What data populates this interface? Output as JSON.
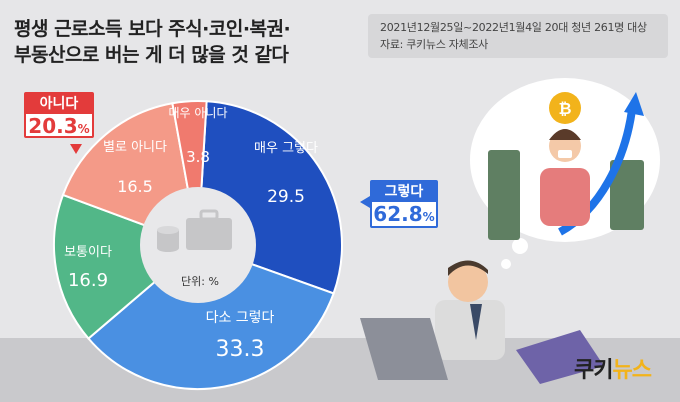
{
  "title": {
    "line1": "평생 근로소득 보다 주식·코인·복권·",
    "line2": "부동산으로 버는 게 더 많을 것 같다"
  },
  "meta": {
    "survey": "2021년12월25일~2022년1월4일  20대 청년 261명 대상",
    "source": "자료: 쿠키뉴스 자체조사"
  },
  "callouts": {
    "no": {
      "label": "아니다",
      "value": "20.3",
      "unit": "%"
    },
    "yes": {
      "label": "그렇다",
      "value": "62.8",
      "unit": "%"
    }
  },
  "unit_label": "단위: %",
  "logo": {
    "main": "쿠키",
    "accent": "뉴스"
  },
  "colors": {
    "bg": "#e6e6e8",
    "very_no": "#f07a6e",
    "no": "#f49a88",
    "neutral": "#52b788",
    "somewhat_yes": "#4a90e2",
    "very_yes": "#1f4fbf",
    "accent_red": "#e33b3b",
    "accent_blue": "#2f6ad9"
  },
  "chart_data": {
    "type": "pie",
    "variant": "donut",
    "unit": "%",
    "slices": [
      {
        "label": "매우 그렇다",
        "value": 29.5
      },
      {
        "label": "다소 그렇다",
        "value": 33.3
      },
      {
        "label": "보통이다",
        "value": 16.9
      },
      {
        "label": "별로 아니다",
        "value": 16.5
      },
      {
        "label": "매우 아니다",
        "value": 3.8
      }
    ]
  }
}
